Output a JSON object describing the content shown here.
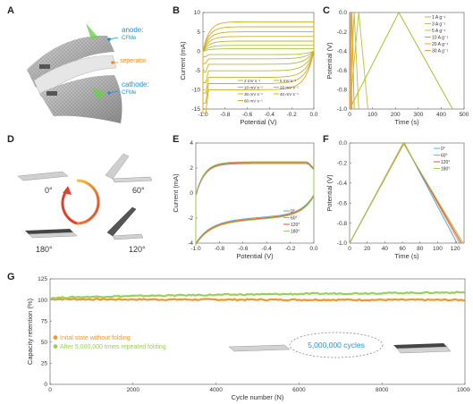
{
  "panel_labels": [
    "A",
    "B",
    "C",
    "D",
    "E",
    "F",
    "G"
  ],
  "panel_a": {
    "anode_label": "anode:",
    "anode_sub": "CFMe",
    "separator_label": "seperator",
    "cathode_label": "cathode:",
    "cathode_sub": "CFMe",
    "colors": {
      "anode": "#1e90d8",
      "separator": "#f08c1e",
      "cathode": "#1e90d8"
    }
  },
  "panel_d": {
    "angles": [
      "0°",
      "60°",
      "120°",
      "180°"
    ]
  },
  "colors": {
    "blue": "#5aa8de",
    "orange": "#f0962d",
    "red": "#e0504a",
    "green": "#9bcf5c",
    "gold": "#d9a820",
    "olive": "#a8c23a"
  },
  "chart_data": [
    {
      "id": "B",
      "type": "line",
      "xlabel": "Potential (V)",
      "ylabel": "Current (mA)",
      "xlim": [
        -1.0,
        0.0
      ],
      "ylim": [
        -15,
        10
      ],
      "xticks": [
        "-1.0",
        "-0.8",
        "-0.6",
        "-0.4",
        "-0.2",
        "0.0"
      ],
      "yticks": [
        "10",
        "5",
        "0",
        "-5",
        "-10",
        "-15"
      ],
      "legend": [
        "2 mV s⁻¹",
        "5 mV s⁻¹",
        "10 mV s⁻¹",
        "20 mV s⁻¹",
        "30 mV s⁻¹",
        "40 mV s⁻¹",
        "60 mV s⁻¹"
      ],
      "series_top": [
        0.6,
        1.5,
        2.6,
        3.8,
        5.0,
        6.3,
        7.6
      ],
      "series_bottom": [
        -0.9,
        -2.0,
        -3.4,
        -5.1,
        -6.8,
        -8.4,
        -10.0
      ]
    },
    {
      "id": "C",
      "type": "line",
      "xlabel": "Time (s)",
      "ylabel": "Potential (V)",
      "xlim": [
        0,
        500
      ],
      "ylim": [
        -1.0,
        0.0
      ],
      "xticks": [
        "0",
        "100",
        "200",
        "300",
        "400",
        "500"
      ],
      "yticks": [
        "0.0",
        "-0.2",
        "-0.4",
        "-0.6",
        "-0.8",
        "-1.0"
      ],
      "legend": [
        "1 A g⁻¹",
        "3 A g⁻¹",
        "5 A g⁻¹",
        "10 A g⁻¹",
        "20 A g⁻¹",
        "30 A g⁻¹"
      ],
      "series_peak_time": [
        215,
        40,
        20,
        10,
        5,
        3
      ],
      "series_end_time": [
        450,
        80,
        40,
        20,
        10,
        6
      ]
    },
    {
      "id": "E",
      "type": "line",
      "xlabel": "Potential (V)",
      "ylabel": "Current (mA)",
      "xlim": [
        -1.0,
        0.0
      ],
      "ylim": [
        -4,
        4
      ],
      "xticks": [
        "-1.0",
        "-0.8",
        "-0.6",
        "-0.4",
        "-0.2",
        "0.0"
      ],
      "yticks": [
        "4",
        "2",
        "0",
        "-2",
        "-4"
      ],
      "legend": [
        "0°",
        "60°",
        "120°",
        "180°"
      ]
    },
    {
      "id": "F",
      "type": "line",
      "xlabel": "Time (s)",
      "ylabel": "Potential (V)",
      "xlim": [
        0,
        130
      ],
      "ylim": [
        -1.0,
        0.0
      ],
      "xticks": [
        "0",
        "20",
        "40",
        "60",
        "80",
        "100",
        "120"
      ],
      "yticks": [
        "0.0",
        "-0.2",
        "-0.4",
        "-0.6",
        "-0.8",
        "-1.0"
      ],
      "legend": [
        "0°",
        "60°",
        "120°",
        "180°"
      ],
      "peak_time": [
        62,
        62,
        61,
        61
      ],
      "end_time": [
        122,
        125,
        127,
        129
      ]
    },
    {
      "id": "G",
      "type": "scatter",
      "xlabel": "Cycle number (N)",
      "ylabel": "Capacity retention (%)",
      "xlim": [
        0,
        10000
      ],
      "ylim": [
        0,
        125
      ],
      "xticks": [
        "0",
        "2000",
        "4000",
        "6000",
        "8000",
        "10000"
      ],
      "yticks": [
        "125",
        "100",
        "75",
        "50",
        "25",
        "0"
      ],
      "legend": [
        "Inital state without folding",
        "After 5,000,000 times repeated folding"
      ],
      "series": [
        {
          "name": "Inital state without folding",
          "start": 101,
          "end": 100
        },
        {
          "name": "After 5,000,000 times repeated folding",
          "start": 102,
          "end": 109
        }
      ],
      "annotation": "5,000,000 cycles"
    }
  ]
}
